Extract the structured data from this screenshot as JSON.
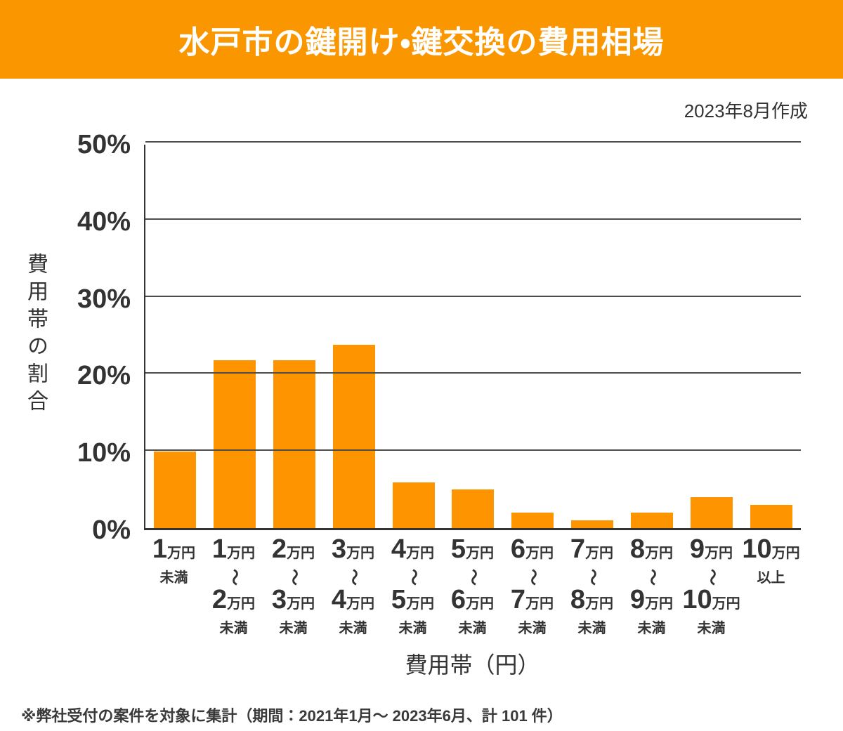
{
  "header": {
    "title": "水戸市の鍵開け・鍵交換の費用相場",
    "bg_color": "#fa9600",
    "text_color": "#ffffff"
  },
  "meta": {
    "created_label": "2023年8月作成"
  },
  "chart_data": {
    "type": "bar",
    "title": "水戸市の鍵開け・鍵交換の費用相場",
    "xlabel": "費用帯（円）",
    "ylabel": "費用帯の割合",
    "ylim": [
      0,
      50
    ],
    "grid": true,
    "legend": "none",
    "bar_color": "#fe9400",
    "gridline_color": "#4d4d4d",
    "yticks": [
      {
        "label": "50%",
        "value": 50
      },
      {
        "label": "40%",
        "value": 40
      },
      {
        "label": "30%",
        "value": 30
      },
      {
        "label": "20%",
        "value": 20
      },
      {
        "label": "10%",
        "value": 10
      },
      {
        "label": "0%",
        "value": 0
      }
    ],
    "categories": [
      "1万円未満",
      "1万円〜2万円未満",
      "2万円〜3万円未満",
      "3万円〜4万円未満",
      "4万円〜5万円未満",
      "5万円〜6万円未満",
      "6万円〜7万円未満",
      "7万円〜8万円未満",
      "8万円〜9万円未満",
      "9万円〜10万円未満",
      "10万円以上"
    ],
    "category_labels": [
      {
        "num": "1",
        "unit": "万円",
        "suffix": "未満"
      },
      {
        "num": "1",
        "unit": "万円",
        "tilde": "〜",
        "num2": "2",
        "unit2": "万円",
        "suffix": "未満"
      },
      {
        "num": "2",
        "unit": "万円",
        "tilde": "〜",
        "num2": "3",
        "unit2": "万円",
        "suffix": "未満"
      },
      {
        "num": "3",
        "unit": "万円",
        "tilde": "〜",
        "num2": "4",
        "unit2": "万円",
        "suffix": "未満"
      },
      {
        "num": "4",
        "unit": "万円",
        "tilde": "〜",
        "num2": "5",
        "unit2": "万円",
        "suffix": "未満"
      },
      {
        "num": "5",
        "unit": "万円",
        "tilde": "〜",
        "num2": "6",
        "unit2": "万円",
        "suffix": "未満"
      },
      {
        "num": "6",
        "unit": "万円",
        "tilde": "〜",
        "num2": "7",
        "unit2": "万円",
        "suffix": "未満"
      },
      {
        "num": "7",
        "unit": "万円",
        "tilde": "〜",
        "num2": "8",
        "unit2": "万円",
        "suffix": "未満"
      },
      {
        "num": "8",
        "unit": "万円",
        "tilde": "〜",
        "num2": "9",
        "unit2": "万円",
        "suffix": "未満"
      },
      {
        "num": "9",
        "unit": "万円",
        "tilde": "〜",
        "num2": "10",
        "unit2": "万円",
        "suffix": "未満"
      },
      {
        "num": "10",
        "unit": "万円",
        "suffix": "以上"
      }
    ],
    "values": [
      9.9,
      21.8,
      21.8,
      23.8,
      5.9,
      5.0,
      2.0,
      1.0,
      2.0,
      4.0,
      3.0
    ]
  },
  "footnote": {
    "text": "※弊社受付の案件を対象に集計（期間：2021年1月～ 2023年6月、計 101 件）"
  }
}
